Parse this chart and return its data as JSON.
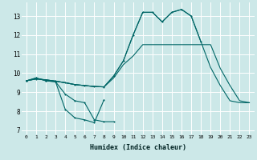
{
  "xlabel": "Humidex (Indice chaleur)",
  "bg_color": "#cce8e8",
  "grid_color": "#ffffff",
  "line_color": "#006666",
  "xlim": [
    -0.5,
    23.5
  ],
  "ylim": [
    6.8,
    13.7
  ],
  "yticks": [
    7,
    8,
    9,
    10,
    11,
    12,
    13
  ],
  "xticks": [
    0,
    1,
    2,
    3,
    4,
    5,
    6,
    7,
    8,
    9,
    10,
    11,
    12,
    13,
    14,
    15,
    16,
    17,
    18,
    19,
    20,
    21,
    22,
    23
  ],
  "line1_y": [
    9.6,
    9.75,
    9.6,
    9.55,
    8.1,
    7.65,
    7.55,
    7.4,
    8.6,
    null,
    null,
    null,
    null,
    null,
    null,
    null,
    null,
    null,
    null,
    null,
    null,
    null,
    null,
    null
  ],
  "line2_y": [
    9.6,
    9.75,
    9.6,
    9.55,
    8.9,
    8.55,
    8.45,
    7.55,
    7.45,
    7.45,
    null,
    null,
    null,
    null,
    null,
    null,
    null,
    null,
    null,
    null,
    null,
    null,
    null,
    null
  ],
  "line3_y": [
    9.6,
    9.7,
    9.65,
    9.58,
    9.5,
    9.4,
    9.35,
    9.3,
    9.28,
    9.75,
    10.45,
    10.9,
    11.5,
    11.5,
    11.5,
    11.5,
    11.5,
    11.5,
    11.5,
    11.5,
    10.25,
    9.35,
    8.55,
    8.45
  ],
  "line4_y": [
    9.6,
    9.7,
    9.65,
    9.58,
    9.5,
    9.4,
    9.35,
    9.3,
    9.28,
    9.85,
    10.65,
    12.0,
    13.2,
    13.2,
    12.7,
    13.2,
    13.35,
    13.0,
    11.65,
    null,
    null,
    null,
    null,
    null
  ],
  "line5_y": [
    9.6,
    9.7,
    9.65,
    9.58,
    9.5,
    9.4,
    9.35,
    9.3,
    9.28,
    9.85,
    10.65,
    12.0,
    13.2,
    13.2,
    12.7,
    13.2,
    13.35,
    13.0,
    11.65,
    10.3,
    9.35,
    8.55,
    8.45,
    8.45
  ]
}
